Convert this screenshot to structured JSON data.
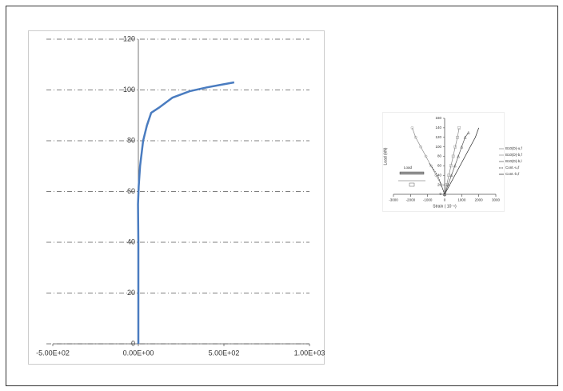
{
  "chart_data": [
    {
      "type": "line",
      "x": [
        0,
        0,
        0,
        -2,
        2,
        10,
        28,
        50,
        75,
        120,
        200,
        300,
        400,
        480,
        560
      ],
      "series": [
        {
          "color": "#4a7cc0",
          "values": [
            0,
            20,
            40,
            55,
            62,
            70,
            80,
            86,
            91,
            93,
            97,
            99.5,
            101,
            102,
            103
          ]
        }
      ],
      "xlim": [
        -500,
        1000
      ],
      "xticks": [
        {
          "value": -500,
          "label": "-5.00E+02"
        },
        {
          "value": 0,
          "label": "0.00E+00"
        },
        {
          "value": 500,
          "label": "5.00E+02"
        },
        {
          "value": 1000,
          "label": "1.00E+03"
        }
      ],
      "ylim": [
        0,
        120
      ],
      "yticks": [
        0,
        20,
        40,
        60,
        80,
        100,
        120
      ],
      "grid": true
    },
    {
      "type": "line",
      "x_label": "Strain ( 10⁻⁶)",
      "y_label": "Load (kN)",
      "annotation": "Load",
      "legend": "right",
      "x": [
        0,
        1,
        2,
        3,
        4,
        5,
        6,
        7
      ],
      "series": [
        {
          "name": "B10(D)-u,f",
          "color": "#888888",
          "marker": "circle",
          "x": [
            0,
            -200,
            -500,
            -800,
            -1100,
            -1400,
            -1700,
            -1900
          ],
          "values": [
            0,
            20,
            40,
            60,
            80,
            100,
            120,
            140
          ]
        },
        {
          "name": "B10(D)-b,f",
          "color": "#888888",
          "marker": "square",
          "x": [
            0,
            120,
            250,
            370,
            500,
            620,
            750,
            850
          ],
          "values": [
            0,
            20,
            40,
            60,
            80,
            100,
            120,
            140
          ]
        },
        {
          "name": "B10(D)-b,l",
          "color": "#555555",
          "marker": "triangle",
          "x": [
            0,
            200,
            400,
            600,
            800,
            1000,
            1200,
            1400
          ],
          "values": [
            0,
            20,
            40,
            60,
            80,
            100,
            120,
            130
          ]
        },
        {
          "name": "Cont.-u,f",
          "color": "#333333",
          "dash": true,
          "x": [
            0,
            -150,
            -300,
            -500,
            -700,
            -900
          ],
          "values": [
            0,
            15,
            30,
            45,
            55,
            65
          ]
        },
        {
          "name": "Cont.-b,f",
          "color": "#222222",
          "x": [
            0,
            300,
            600,
            900,
            1200,
            1500,
            1800,
            2000
          ],
          "values": [
            0,
            20,
            40,
            60,
            80,
            100,
            120,
            140
          ]
        }
      ],
      "xlim": [
        -3000,
        3000
      ],
      "xticks": [
        -3000,
        -2000,
        -1000,
        0,
        1000,
        2000,
        3000
      ],
      "ylim": [
        0,
        160
      ],
      "yticks": [
        0,
        20,
        40,
        60,
        80,
        100,
        120,
        140,
        160
      ],
      "grid": false
    }
  ]
}
